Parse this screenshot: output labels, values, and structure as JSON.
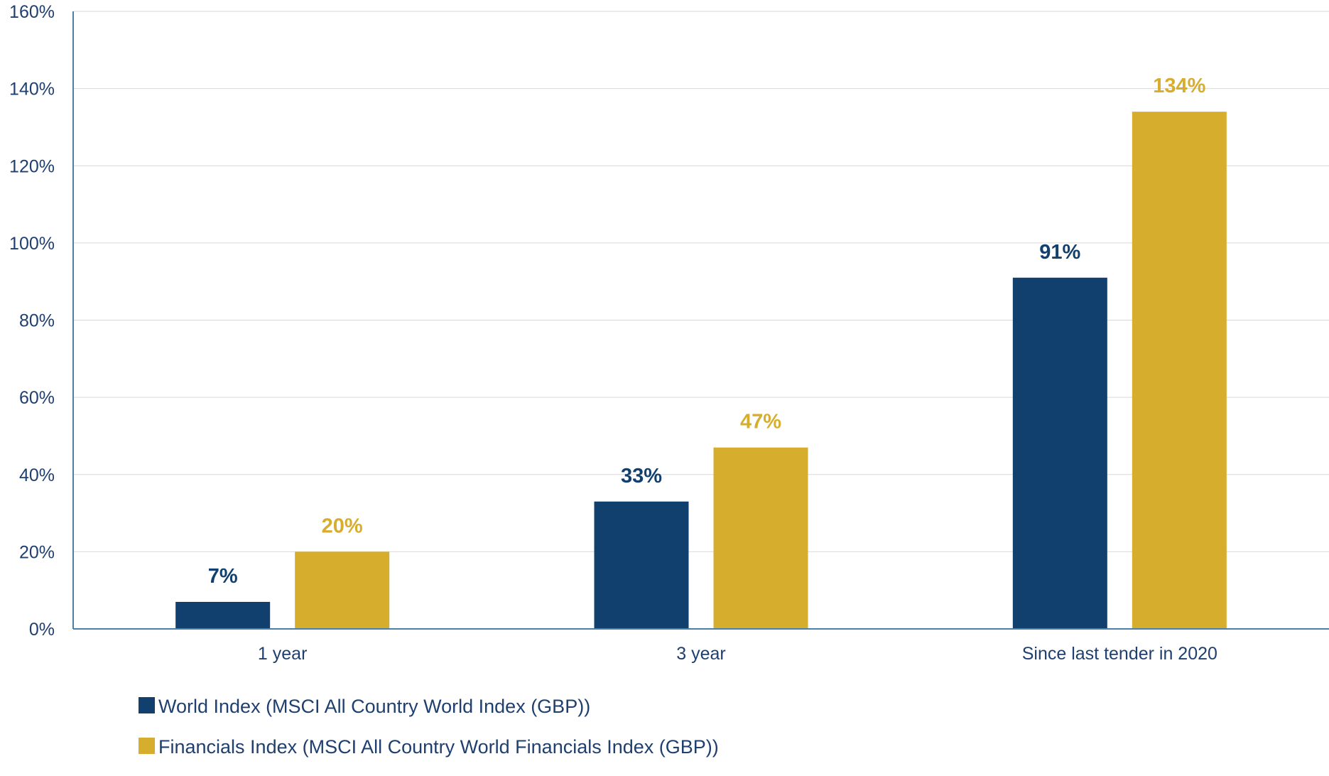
{
  "chart_data": {
    "type": "bar",
    "categories": [
      "1 year",
      "3 year",
      "Since last tender in 2020"
    ],
    "series": [
      {
        "name": "World Index (MSCI All Country World Index (GBP))",
        "values": [
          7,
          33,
          91
        ],
        "labels": [
          "7%",
          "33%",
          "91%"
        ],
        "color": "#12406e"
      },
      {
        "name": "Financials Index (MSCI All Country World Financials Index (GBP))",
        "values": [
          20,
          47,
          134
        ],
        "labels": [
          "20%",
          "47%",
          "134%"
        ],
        "color": "#d6ad2d"
      }
    ],
    "ylim": [
      0,
      160
    ],
    "yticks": [
      0,
      20,
      40,
      60,
      80,
      100,
      120,
      140,
      160
    ],
    "ytick_labels": [
      "0%",
      "20%",
      "40%",
      "60%",
      "80%",
      "100%",
      "120%",
      "140%",
      "160%"
    ],
    "grid": true,
    "legend_position": "bottom-left",
    "axis_color": "#4a7fa8",
    "grid_color": "#d9d9d9"
  }
}
